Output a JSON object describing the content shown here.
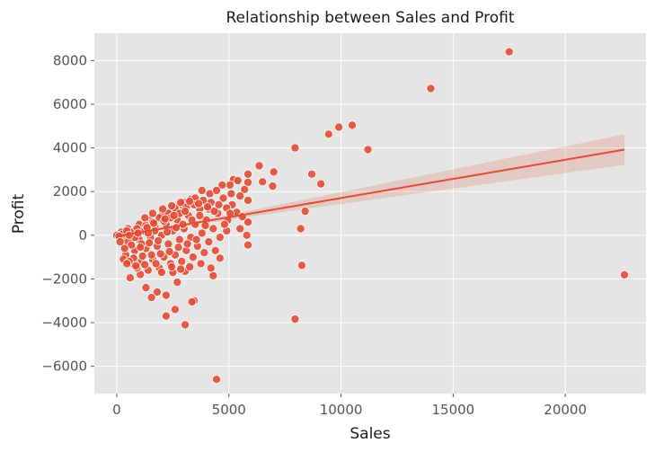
{
  "chart_data": {
    "type": "scatter",
    "title": "Relationship between Sales and Profit",
    "xlabel": "Sales",
    "ylabel": "Profit",
    "xlim": [
      -1000,
      23600
    ],
    "ylim": [
      -7250,
      9250
    ],
    "x_ticks": [
      0,
      5000,
      10000,
      15000,
      20000
    ],
    "y_ticks": [
      -6000,
      -4000,
      -2000,
      0,
      2000,
      4000,
      6000,
      8000
    ],
    "x_tick_labels": [
      "0",
      "5000",
      "10000",
      "15000",
      "20000"
    ],
    "y_tick_labels": [
      "−6000",
      "−4000",
      "−2000",
      "0",
      "2000",
      "4000",
      "6000",
      "8000"
    ],
    "grid": true,
    "style": "ggplot",
    "colors": {
      "background": "#e5e5e5",
      "grid": "#ffffff",
      "point": "#e24a33",
      "point_edge": "#ffffff",
      "line": "#e24a33",
      "band": "#e24a33"
    },
    "regression": {
      "x": [
        0,
        22638
      ],
      "y": [
        -50,
        3920
      ],
      "ci_upper_end": 4650,
      "ci_lower_end": 3250,
      "ci_at_mean": 70
    },
    "points": [
      [
        22638,
        -1812
      ],
      [
        17500,
        8400
      ],
      [
        14000,
        6720
      ],
      [
        10500,
        5040
      ],
      [
        9900,
        4950
      ],
      [
        9450,
        4630
      ],
      [
        11200,
        3920
      ],
      [
        7950,
        4000
      ],
      [
        8700,
        2800
      ],
      [
        9100,
        2350
      ],
      [
        8400,
        1100
      ],
      [
        8200,
        300
      ],
      [
        8250,
        -1380
      ],
      [
        7950,
        -3840
      ],
      [
        7000,
        2900
      ],
      [
        6950,
        2250
      ],
      [
        6350,
        3180
      ],
      [
        6500,
        2450
      ],
      [
        5850,
        2800
      ],
      [
        5850,
        2420
      ],
      [
        5700,
        2100
      ],
      [
        5850,
        1600
      ],
      [
        5850,
        600
      ],
      [
        5800,
        0
      ],
      [
        5850,
        -450
      ],
      [
        5200,
        2550
      ],
      [
        5400,
        2500
      ],
      [
        5050,
        2300
      ],
      [
        5500,
        1800
      ],
      [
        5350,
        1050
      ],
      [
        5600,
        850
      ],
      [
        5150,
        1400
      ],
      [
        4950,
        700
      ],
      [
        5500,
        300
      ],
      [
        4900,
        200
      ],
      [
        4400,
        -700
      ],
      [
        4300,
        -1850
      ],
      [
        4600,
        -1050
      ],
      [
        4450,
        -6600
      ],
      [
        3450,
        -3000
      ],
      [
        3350,
        -3050
      ],
      [
        3050,
        -4100
      ],
      [
        2600,
        -3400
      ],
      [
        2200,
        -3700
      ],
      [
        3050,
        -1650
      ],
      [
        2700,
        -2150
      ],
      [
        2200,
        -2750
      ],
      [
        1800,
        -2600
      ],
      [
        1550,
        -2850
      ],
      [
        1300,
        -2400
      ],
      [
        1050,
        -1800
      ],
      [
        600,
        -1950
      ],
      [
        4150,
        1900
      ],
      [
        3800,
        2050
      ],
      [
        3300,
        1650
      ],
      [
        2900,
        1400
      ],
      [
        2450,
        1100
      ],
      [
        2000,
        900
      ],
      [
        1500,
        700
      ],
      [
        1000,
        500
      ],
      [
        500,
        300
      ],
      [
        200,
        150
      ],
      [
        0,
        0
      ],
      [
        4700,
        2300
      ],
      [
        4200,
        1500
      ],
      [
        3700,
        1200
      ],
      [
        3200,
        900
      ],
      [
        2700,
        700
      ],
      [
        2200,
        500
      ],
      [
        1700,
        400
      ],
      [
        1200,
        200
      ],
      [
        700,
        100
      ],
      [
        300,
        -100
      ],
      [
        4500,
        1000
      ],
      [
        4000,
        700
      ],
      [
        3500,
        500
      ],
      [
        3000,
        300
      ],
      [
        2500,
        200
      ],
      [
        2000,
        0
      ],
      [
        1500,
        -100
      ],
      [
        1000,
        -200
      ],
      [
        500,
        -300
      ],
      [
        4800,
        500
      ],
      [
        4300,
        300
      ],
      [
        3800,
        100
      ],
      [
        3300,
        -100
      ],
      [
        2800,
        -200
      ],
      [
        2300,
        -400
      ],
      [
        1800,
        -500
      ],
      [
        1300,
        -600
      ],
      [
        800,
        -700
      ],
      [
        400,
        -900
      ],
      [
        4600,
        -100
      ],
      [
        4100,
        -300
      ],
      [
        3600,
        -500
      ],
      [
        3100,
        -700
      ],
      [
        2600,
        -900
      ],
      [
        2100,
        -1000
      ],
      [
        1600,
        -1100
      ],
      [
        1100,
        -1200
      ],
      [
        700,
        -1300
      ],
      [
        300,
        -1100
      ],
      [
        3900,
        -800
      ],
      [
        3400,
        -1000
      ],
      [
        2900,
        -1200
      ],
      [
        2400,
        -1300
      ],
      [
        1900,
        -1500
      ],
      [
        1400,
        -1600
      ],
      [
        900,
        -1500
      ],
      [
        2500,
        -1700
      ],
      [
        2000,
        -1700
      ],
      [
        3000,
        1500
      ],
      [
        2600,
        1250
      ],
      [
        2300,
        1000
      ],
      [
        1900,
        800
      ],
      [
        1600,
        600
      ],
      [
        1300,
        450
      ],
      [
        900,
        300
      ],
      [
        600,
        150
      ],
      [
        250,
        50
      ],
      [
        100,
        -50
      ],
      [
        3500,
        1700
      ],
      [
        3100,
        1300
      ],
      [
        2800,
        1000
      ],
      [
        2400,
        800
      ],
      [
        2100,
        650
      ],
      [
        1700,
        200
      ],
      [
        1400,
        100
      ],
      [
        1100,
        -400
      ],
      [
        800,
        -100
      ],
      [
        450,
        200
      ],
      [
        4450,
        2050
      ],
      [
        4100,
        1200
      ],
      [
        3700,
        900
      ],
      [
        3350,
        700
      ],
      [
        2950,
        500
      ],
      [
        2650,
        350
      ],
      [
        2250,
        150
      ],
      [
        1850,
        -250
      ],
      [
        1450,
        -350
      ],
      [
        1050,
        -550
      ],
      [
        650,
        -450
      ],
      [
        350,
        -600
      ],
      [
        150,
        -300
      ],
      [
        5100,
        1900
      ],
      [
        4750,
        1700
      ],
      [
        4350,
        1100
      ],
      [
        3950,
        450
      ],
      [
        3550,
        -200
      ],
      [
        3150,
        -400
      ],
      [
        2750,
        -550
      ],
      [
        2350,
        -750
      ],
      [
        1950,
        -850
      ],
      [
        1550,
        -900
      ],
      [
        1150,
        -950
      ],
      [
        750,
        -1050
      ],
      [
        550,
        -1200
      ],
      [
        4200,
        -1500
      ],
      [
        3750,
        -1300
      ],
      [
        3250,
        -1450
      ],
      [
        2850,
        -1550
      ],
      [
        2450,
        -1450
      ],
      [
        1750,
        -1300
      ],
      [
        1250,
        -1350
      ],
      [
        850,
        -1400
      ],
      [
        450,
        -1300
      ],
      [
        3850,
        1600
      ],
      [
        3450,
        1400
      ],
      [
        3050,
        1100
      ],
      [
        2550,
        900
      ],
      [
        2150,
        750
      ],
      [
        1650,
        550
      ],
      [
        1350,
        350
      ],
      [
        950,
        100
      ],
      [
        550,
        0
      ],
      [
        1250,
        800
      ],
      [
        1600,
        1000
      ],
      [
        2050,
        1200
      ],
      [
        2450,
        1350
      ],
      [
        2850,
        1500
      ],
      [
        3250,
        1550
      ],
      [
        3650,
        1450
      ],
      [
        4050,
        1300
      ],
      [
        4550,
        1400
      ],
      [
        4900,
        1250
      ],
      [
        5050,
        1000
      ]
    ]
  }
}
